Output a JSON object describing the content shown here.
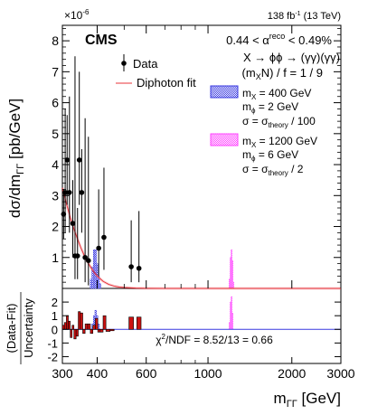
{
  "chart_data": {
    "type": "scatter",
    "experiment": "CMS",
    "lumi_main": "138 fb",
    "lumi_exp": "-1",
    "lumi_energy": "(13 TeV)",
    "y_exponent": "×10",
    "y_exponent_power": "-6",
    "category_prefix": "0.44 < α",
    "category_sup": "reco",
    "category_suffix": " < 0.49%",
    "process": "X → ϕϕ → (γγ)(γγ)",
    "mass_ratio": "(m",
    "mass_ratio_sub": "X",
    "mass_ratio_rest": "N) / f = 1 / 9",
    "ylabel": "dσ/dm",
    "ylabel_sub": "ΓΓ",
    "ylabel_units": " [pb/GeV]",
    "xlabel": "m",
    "xlabel_sub": "ΓΓ",
    "xlabel_units": " [GeV]",
    "ratio_ylabel_top": "(Data-Fit)",
    "ratio_ylabel_bottom": "Uncertainty",
    "chi2_label": "χ",
    "chi2_sup": "2",
    "chi2_rest": "/NDF = 8.52/13 = 0.66",
    "xscale": "log",
    "xlim": [
      300,
      3000
    ],
    "ylim": [
      0,
      8.5
    ],
    "ratio_ylim": [
      -2.5,
      3
    ],
    "x_ticks": [
      "300",
      "400",
      "600",
      "1000",
      "2000",
      "3000"
    ],
    "x_tick_values": [
      300,
      400,
      600,
      1000,
      2000,
      3000
    ],
    "y_ticks": [
      "1",
      "2",
      "3",
      "4",
      "5",
      "6",
      "7",
      "8"
    ],
    "y_tick_values": [
      1,
      2,
      3,
      4,
      5,
      6,
      7,
      8
    ],
    "ratio_ticks": [
      "-2",
      "-1",
      "0",
      "1",
      "2"
    ],
    "ratio_tick_values": [
      -2,
      -1,
      0,
      1,
      2
    ],
    "legend": {
      "data": "Data",
      "fit": "Diphoton fit",
      "sig1_l1": "m",
      "sig1_l1_sub": "X",
      "sig1_l1_rest": " = 400 GeV",
      "sig1_l2": "m",
      "sig1_l2_sub": "ϕ",
      "sig1_l2_rest": " = 2 GeV",
      "sig1_l3": "σ = σ",
      "sig1_l3_sub": "theory",
      "sig1_l3_rest": " / 100",
      "sig2_l1": "m",
      "sig2_l1_sub": "X",
      "sig2_l1_rest": " = 1200 GeV",
      "sig2_l2": "m",
      "sig2_l2_sub": "ϕ",
      "sig2_l2_rest": " = 6 GeV",
      "sig2_l3": "σ = σ",
      "sig2_l3_sub": "theory",
      "sig2_l3_rest": " / 2"
    },
    "colors": {
      "data": "#000000",
      "fit": "#e8333a",
      "signal_400": "#3a3ae0",
      "signal_1200": "#ff44ff",
      "residual": "#cc1111"
    },
    "data_points": [
      {
        "x": 303,
        "y": 2.4,
        "ylo": 1.6,
        "yhi": 3.2
      },
      {
        "x": 307,
        "y": 3.1,
        "ylo": 1.8,
        "yhi": 5.8
      },
      {
        "x": 312,
        "y": 4.15,
        "ylo": 2.7,
        "yhi": 5.6
      },
      {
        "x": 318,
        "y": 3.1,
        "ylo": 1.8,
        "yhi": 6.2
      },
      {
        "x": 327,
        "y": 2.1,
        "ylo": 1.0,
        "yhi": 3.5
      },
      {
        "x": 333,
        "y": 1.05,
        "ylo": 0.3,
        "yhi": 7.5
      },
      {
        "x": 340,
        "y": 1.05,
        "ylo": 0.3,
        "yhi": 2.6
      },
      {
        "x": 345,
        "y": 4.15,
        "ylo": 2.7,
        "yhi": 7.0
      },
      {
        "x": 352,
        "y": 3.1,
        "ylo": 1.8,
        "yhi": 4.5
      },
      {
        "x": 362,
        "y": 1.0,
        "ylo": 0.2,
        "yhi": 5.5
      },
      {
        "x": 372,
        "y": 0.9,
        "ylo": 0.1,
        "yhi": 4.9
      },
      {
        "x": 405,
        "y": 1.3,
        "ylo": 0.4,
        "yhi": 3.2
      },
      {
        "x": 423,
        "y": 1.65,
        "ylo": 0.6,
        "yhi": 3.9
      },
      {
        "x": 530,
        "y": 0.7,
        "ylo": 0.2,
        "yhi": 2.2
      },
      {
        "x": 565,
        "y": 0.65,
        "ylo": 0.2,
        "yhi": 2.5
      }
    ],
    "fit_curve": {
      "x": [
        300,
        310,
        320,
        330,
        340,
        350,
        360,
        370,
        380,
        390,
        400,
        420,
        440,
        460,
        480,
        500,
        550,
        600,
        700,
        800,
        1000,
        1500,
        2000,
        3000
      ],
      "y": [
        3.25,
        2.75,
        2.3,
        1.92,
        1.6,
        1.3,
        1.05,
        0.85,
        0.67,
        0.52,
        0.4,
        0.23,
        0.13,
        0.075,
        0.045,
        0.03,
        0.012,
        0.005,
        0.001,
        0.0002,
        0,
        0,
        0,
        0
      ]
    },
    "signal_400": {
      "x": [
        380,
        385,
        390,
        395,
        400,
        405,
        410
      ],
      "y": [
        0.3,
        0.7,
        1.25,
        1.25,
        0.8,
        0.4,
        0.15
      ]
    },
    "signal_1200": {
      "x": [
        1195,
        1205,
        1215,
        1225,
        1235
      ],
      "y": [
        0.3,
        1.0,
        1.25,
        0.9,
        0.2
      ]
    },
    "ratio_data_bins": [
      {
        "x1": 300,
        "x2": 305,
        "y": 0.3
      },
      {
        "x1": 305,
        "x2": 310,
        "y": 0.5
      },
      {
        "x1": 310,
        "x2": 315,
        "y": 1.0
      },
      {
        "x1": 315,
        "x2": 320,
        "y": 0.6
      },
      {
        "x1": 320,
        "x2": 325,
        "y": -0.6
      },
      {
        "x1": 325,
        "x2": 330,
        "y": 0.3
      },
      {
        "x1": 330,
        "x2": 336,
        "y": -0.7
      },
      {
        "x1": 336,
        "x2": 342,
        "y": -0.5
      },
      {
        "x1": 342,
        "x2": 348,
        "y": 1.3
      },
      {
        "x1": 348,
        "x2": 355,
        "y": 1.2
      },
      {
        "x1": 355,
        "x2": 362,
        "y": -0.3
      },
      {
        "x1": 362,
        "x2": 370,
        "y": 0.4
      },
      {
        "x1": 370,
        "x2": 378,
        "y": 0.4
      },
      {
        "x1": 378,
        "x2": 386,
        "y": -0.3
      },
      {
        "x1": 386,
        "x2": 394,
        "y": 0.3
      },
      {
        "x1": 394,
        "x2": 402,
        "y": 0.8
      },
      {
        "x1": 402,
        "x2": 410,
        "y": -0.2
      },
      {
        "x1": 410,
        "x2": 420,
        "y": -0.2
      },
      {
        "x1": 420,
        "x2": 430,
        "y": 1.0
      },
      {
        "x1": 430,
        "x2": 445,
        "y": -0.15
      },
      {
        "x1": 445,
        "x2": 460,
        "y": -0.1
      },
      {
        "x1": 520,
        "x2": 540,
        "y": 0.9
      },
      {
        "x1": 555,
        "x2": 575,
        "y": 0.9
      }
    ],
    "ratio_signal_400": {
      "x": [
        385,
        390,
        395,
        400,
        405
      ],
      "y": [
        0.4,
        1.0,
        1.4,
        1.0,
        0.4
      ]
    },
    "ratio_signal_1200": {
      "x": [
        1195,
        1205,
        1215,
        1225
      ],
      "y": [
        0.5,
        2.0,
        2.4,
        1.2
      ]
    }
  }
}
